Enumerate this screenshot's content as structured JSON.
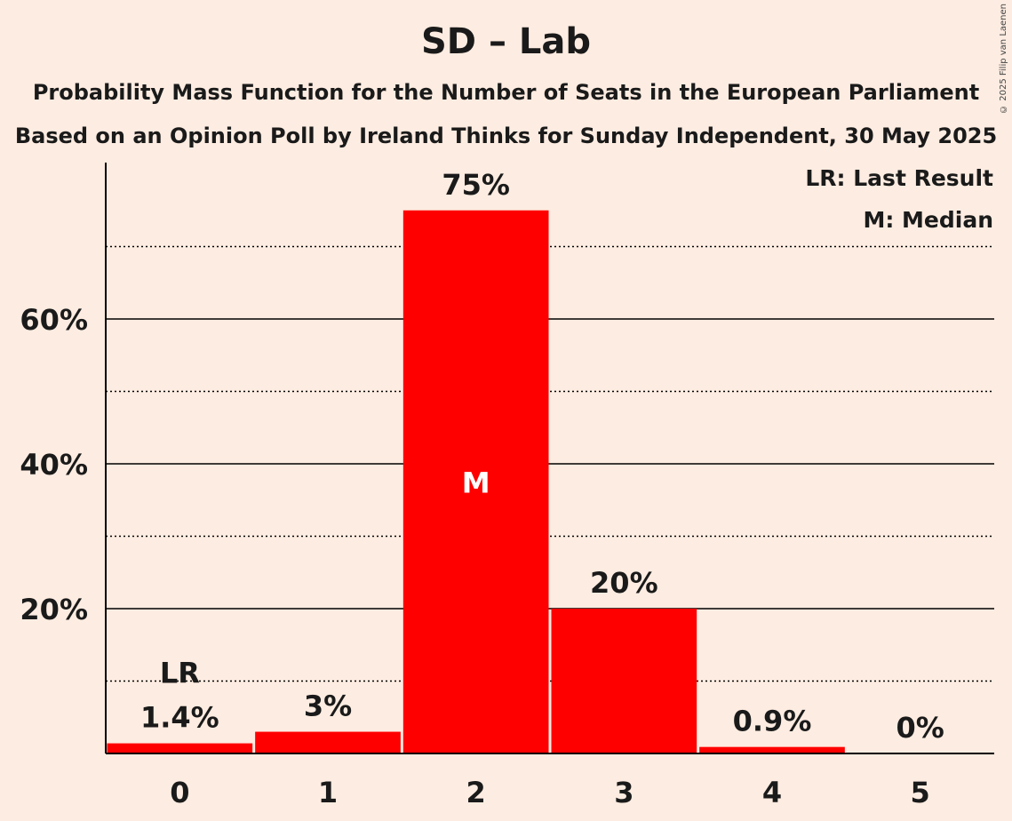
{
  "title": "SD – Lab",
  "subtitle1": "Probability Mass Function for the Number of Seats in the European Parliament",
  "subtitle2": "Based on an Opinion Poll by Ireland Thinks for Sunday Independent, 30 May 2025",
  "copyright": "© 2025 Filip van Laenen",
  "legend": {
    "last_result": "LR: Last Result",
    "median": "M: Median"
  },
  "colors": {
    "bar": "#ff0000",
    "background": "#fdece1"
  },
  "chart_data": {
    "type": "bar",
    "title": "SD – Lab",
    "categories": [
      "0",
      "1",
      "2",
      "3",
      "4",
      "5"
    ],
    "values": [
      1.4,
      3,
      75,
      20,
      0.9,
      0
    ],
    "value_labels": [
      "1.4%",
      "3%",
      "75%",
      "20%",
      "0.9%",
      "0%"
    ],
    "ylim": [
      0,
      82
    ],
    "yticks": [
      20,
      40,
      60
    ],
    "ytick_labels": [
      "20%",
      "40%",
      "60%"
    ],
    "minor_gridlines": [
      10,
      30,
      50,
      70
    ],
    "last_result_index": 0,
    "last_result_label": "LR",
    "median_index": 2,
    "median_label": "M",
    "xlabel": "",
    "ylabel": ""
  }
}
